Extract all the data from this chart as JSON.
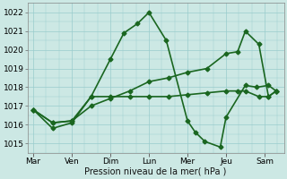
{
  "background_color": "#cce8e4",
  "grid_color": "#99cccc",
  "line_color": "#1a6620",
  "xlabel": "Pression niveau de la mer( hPa )",
  "ylim": [
    1014.5,
    1022.5
  ],
  "yticks": [
    1015,
    1016,
    1017,
    1018,
    1019,
    1020,
    1021,
    1022
  ],
  "x_labels": [
    "Mar",
    "Ven",
    "Dim",
    "Lun",
    "Mer",
    "Jeu",
    "Sam"
  ],
  "x_ticks": [
    0,
    1,
    2,
    3,
    4,
    5,
    6
  ],
  "xlim": [
    -0.15,
    6.5
  ],
  "line1_x": [
    0.0,
    0.5,
    1.0,
    1.5,
    2.0,
    2.35,
    2.7,
    3.0,
    3.45,
    4.0,
    4.2,
    4.45,
    4.85,
    5.0,
    5.5,
    5.8,
    6.1,
    6.3
  ],
  "line1_y": [
    1016.8,
    1015.8,
    1016.1,
    1017.5,
    1019.5,
    1020.9,
    1021.4,
    1022.0,
    1020.5,
    1016.2,
    1015.6,
    1015.1,
    1014.8,
    1016.4,
    1018.1,
    1018.0,
    1018.1,
    1017.8
  ],
  "line2_x": [
    0.0,
    0.5,
    1.0,
    1.5,
    2.0,
    2.5,
    3.0,
    3.5,
    4.0,
    4.5,
    5.0,
    5.3,
    5.5,
    5.85,
    6.1,
    6.3
  ],
  "line2_y": [
    1016.8,
    1016.1,
    1016.2,
    1017.5,
    1017.5,
    1017.5,
    1017.5,
    1017.5,
    1017.6,
    1017.7,
    1017.8,
    1017.8,
    1017.8,
    1017.5,
    1017.5,
    1017.8
  ],
  "line3_x": [
    0.0,
    0.5,
    1.0,
    1.5,
    2.0,
    2.5,
    3.0,
    3.5,
    4.0,
    4.5,
    5.0,
    5.3,
    5.5,
    5.85,
    6.1,
    6.3
  ],
  "line3_y": [
    1016.8,
    1016.1,
    1016.2,
    1017.0,
    1017.4,
    1017.8,
    1018.3,
    1018.5,
    1018.8,
    1019.0,
    1019.8,
    1019.9,
    1021.0,
    1020.3,
    1017.5,
    1017.8
  ],
  "marker": "D",
  "markersize": 2.5,
  "linewidth": 1.2
}
